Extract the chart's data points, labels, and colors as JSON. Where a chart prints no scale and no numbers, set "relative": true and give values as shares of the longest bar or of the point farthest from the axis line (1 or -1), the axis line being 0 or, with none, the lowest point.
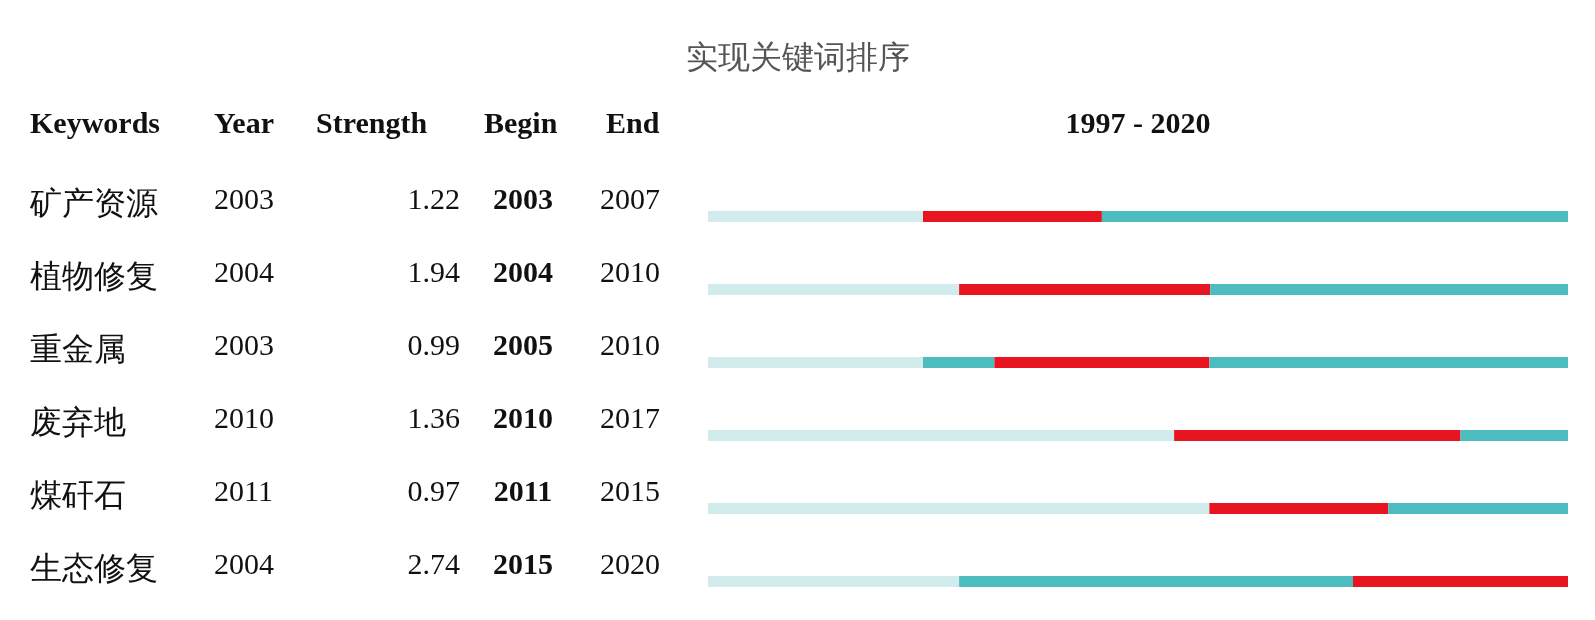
{
  "chart_data": {
    "type": "bar",
    "title": "实现关键词排序",
    "orientation": "horizontal",
    "stacked": true,
    "categories": [
      "矿产资源",
      "植物修复",
      "重金属",
      "废弃地",
      "煤矸石",
      "生态修复"
    ],
    "relative": true,
    "tick_labels": false,
    "grid": false,
    "legend": false,
    "series": [
      {
        "color": "#d2ebed",
        "values": [
          0.25,
          0.292,
          0.25,
          0.542,
          0.583,
          0.292
        ]
      },
      {
        "color": "#4dbcbf",
        "values": [
          0,
          0,
          0.083,
          0,
          0,
          0.458
        ]
      },
      {
        "color": "#e8141f",
        "values": [
          0.208,
          0.292,
          0.25,
          0.333,
          0.208,
          0.25
        ]
      },
      {
        "color": "#4dbcbf",
        "values": [
          0.542,
          0.416,
          0.417,
          0.125,
          0.209,
          0
        ]
      }
    ],
    "annotations": [
      "Keywords",
      "Year",
      "Strength",
      "Begin",
      "End",
      "1997 - 2020",
      "2003",
      "1.22",
      "2003",
      "2007",
      "2004",
      "1.94",
      "2004",
      "2010",
      "2003",
      "0.99",
      "2005",
      "2010",
      "2010",
      "1.36",
      "2010",
      "2017",
      "2011",
      "0.97",
      "2011",
      "2015",
      "2004",
      "2.74",
      "2015",
      "2020"
    ]
  }
}
